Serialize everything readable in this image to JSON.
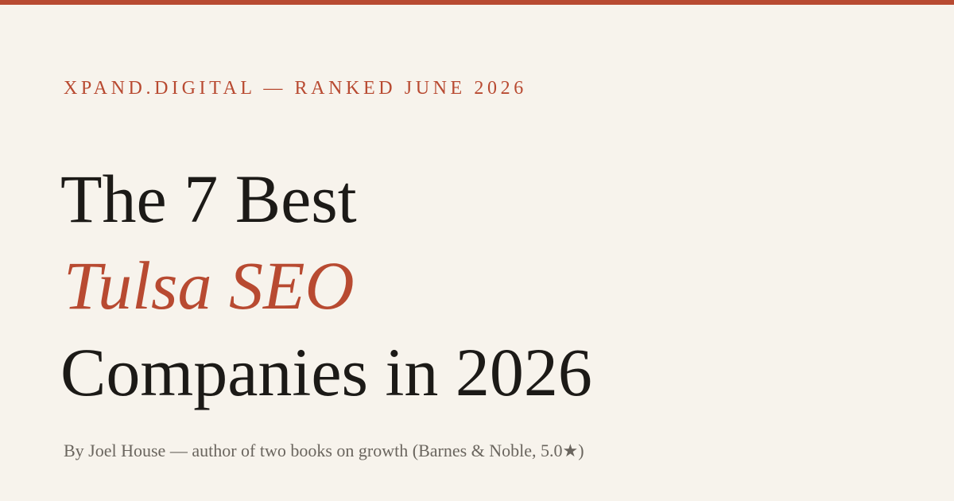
{
  "header": {
    "kicker": "XPAND.DIGITAL — RANKED JUNE 2026"
  },
  "headline": {
    "line1": "The 7 Best",
    "line2": "Tulsa SEO",
    "line3": "Companies in 2026"
  },
  "byline": {
    "text": "By Joel House — author of two books on growth (Barnes & Noble, 5.0★)"
  },
  "colors": {
    "background": "#f7f3ec",
    "accent": "#b84a31",
    "headline": "#1c1a17",
    "byline": "#6a655e"
  }
}
